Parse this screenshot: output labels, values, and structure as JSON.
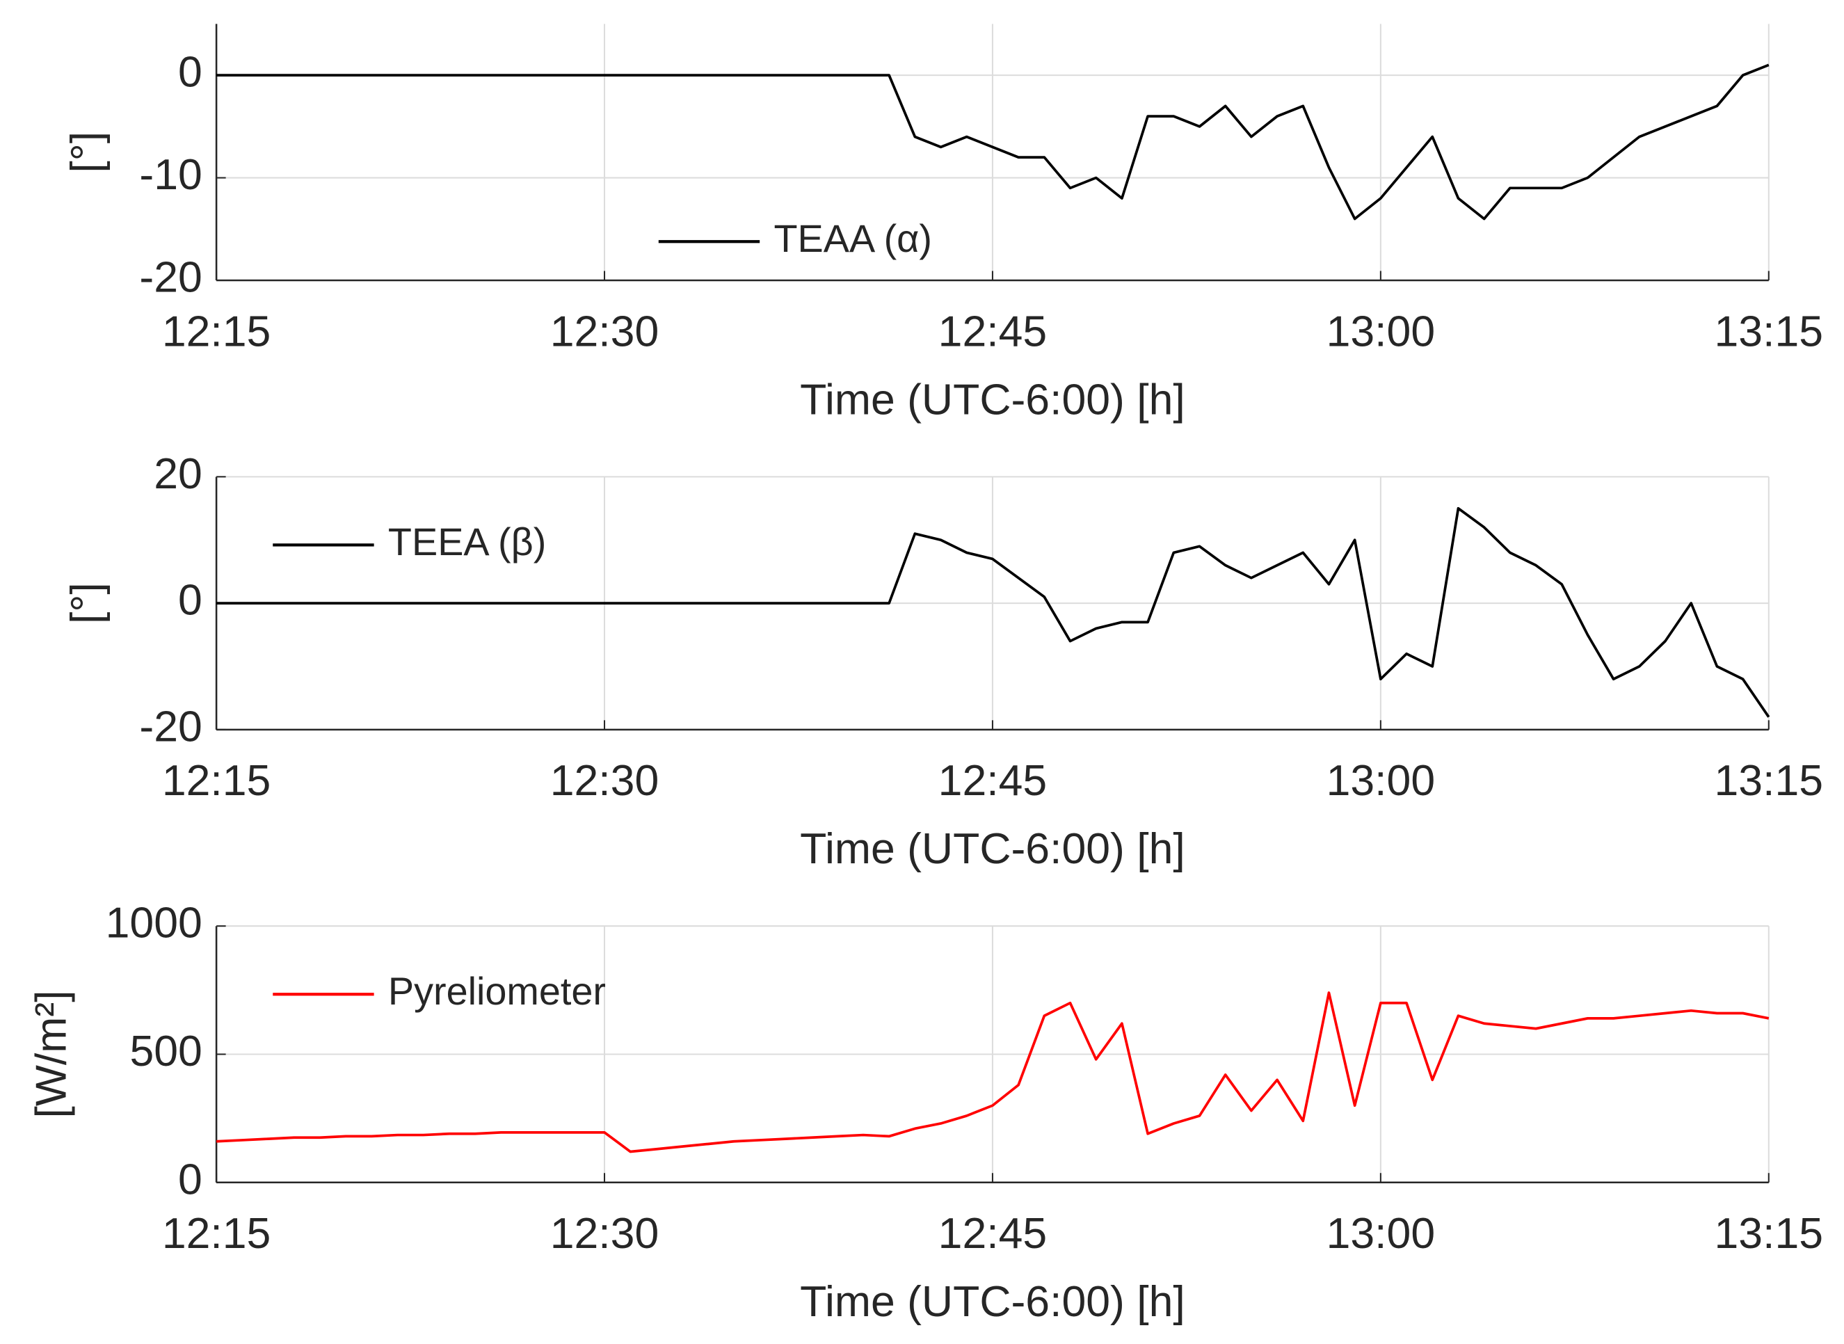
{
  "chart_data": [
    {
      "type": "line",
      "xlabel": "Time (UTC-6:00) [h]",
      "ylabel": "[°]",
      "x": [
        "12:15",
        "12:16",
        "12:17",
        "12:18",
        "12:19",
        "12:20",
        "12:21",
        "12:22",
        "12:23",
        "12:24",
        "12:25",
        "12:26",
        "12:27",
        "12:28",
        "12:29",
        "12:30",
        "12:31",
        "12:32",
        "12:33",
        "12:34",
        "12:35",
        "12:36",
        "12:37",
        "12:38",
        "12:39",
        "12:40",
        "12:41",
        "12:42",
        "12:43",
        "12:44",
        "12:45",
        "12:46",
        "12:47",
        "12:48",
        "12:49",
        "12:50",
        "12:51",
        "12:52",
        "12:53",
        "12:54",
        "12:55",
        "12:56",
        "12:57",
        "12:58",
        "12:59",
        "13:00",
        "13:01",
        "13:02",
        "13:03",
        "13:04",
        "13:05",
        "13:06",
        "13:07",
        "13:08",
        "13:09",
        "13:10",
        "13:11",
        "13:12",
        "13:13",
        "13:14",
        "13:15"
      ],
      "series": [
        {
          "name": "TEAA (α)",
          "color": "#000000",
          "values": [
            0,
            0,
            0,
            0,
            0,
            0,
            0,
            0,
            0,
            0,
            0,
            0,
            0,
            0,
            0,
            0,
            0,
            0,
            0,
            0,
            0,
            0,
            0,
            0,
            0,
            0,
            0,
            -6,
            -7,
            -6,
            -7,
            -8,
            -8,
            -11,
            -10,
            -12,
            -4,
            -4,
            -5,
            -3,
            -6,
            -4,
            -3,
            -9,
            -14,
            -12,
            -9,
            -6,
            -12,
            -14,
            -11,
            -11,
            -11,
            -10,
            -8,
            -6,
            -5,
            -4,
            -3,
            0,
            1
          ]
        }
      ],
      "xlim": [
        "12:15",
        "13:15"
      ],
      "ylim": [
        -20,
        5
      ],
      "xticks": [
        "12:15",
        "12:30",
        "12:45",
        "13:00",
        "13:15"
      ],
      "yticks": [
        -20,
        -10,
        0
      ],
      "grid": true,
      "legend": "lower center"
    },
    {
      "type": "line",
      "xlabel": "Time (UTC-6:00) [h]",
      "ylabel": "[°]",
      "x": [
        "12:15",
        "12:16",
        "12:17",
        "12:18",
        "12:19",
        "12:20",
        "12:21",
        "12:22",
        "12:23",
        "12:24",
        "12:25",
        "12:26",
        "12:27",
        "12:28",
        "12:29",
        "12:30",
        "12:31",
        "12:32",
        "12:33",
        "12:34",
        "12:35",
        "12:36",
        "12:37",
        "12:38",
        "12:39",
        "12:40",
        "12:41",
        "12:42",
        "12:43",
        "12:44",
        "12:45",
        "12:46",
        "12:47",
        "12:48",
        "12:49",
        "12:50",
        "12:51",
        "12:52",
        "12:53",
        "12:54",
        "12:55",
        "12:56",
        "12:57",
        "12:58",
        "12:59",
        "13:00",
        "13:01",
        "13:02",
        "13:03",
        "13:04",
        "13:05",
        "13:06",
        "13:07",
        "13:08",
        "13:09",
        "13:10",
        "13:11",
        "13:12",
        "13:13",
        "13:14",
        "13:15"
      ],
      "series": [
        {
          "name": "TEEA (β)",
          "color": "#000000",
          "values": [
            0,
            0,
            0,
            0,
            0,
            0,
            0,
            0,
            0,
            0,
            0,
            0,
            0,
            0,
            0,
            0,
            0,
            0,
            0,
            0,
            0,
            0,
            0,
            0,
            0,
            0,
            0,
            11,
            10,
            8,
            7,
            4,
            1,
            -6,
            -4,
            -3,
            -3,
            8,
            9,
            6,
            4,
            6,
            8,
            3,
            10,
            -12,
            -8,
            -10,
            15,
            12,
            8,
            6,
            3,
            -5,
            -12,
            -10,
            -6,
            0,
            -10,
            -12,
            -18
          ]
        }
      ],
      "xlim": [
        "12:15",
        "13:15"
      ],
      "ylim": [
        -20,
        20
      ],
      "xticks": [
        "12:15",
        "12:30",
        "12:45",
        "13:00",
        "13:15"
      ],
      "yticks": [
        -20,
        0,
        20
      ],
      "grid": true,
      "legend": "upper left"
    },
    {
      "type": "line",
      "xlabel": "Time (UTC-6:00) [h]",
      "ylabel": "[W/m²]",
      "x": [
        "12:15",
        "12:16",
        "12:17",
        "12:18",
        "12:19",
        "12:20",
        "12:21",
        "12:22",
        "12:23",
        "12:24",
        "12:25",
        "12:26",
        "12:27",
        "12:28",
        "12:29",
        "12:30",
        "12:31",
        "12:32",
        "12:33",
        "12:34",
        "12:35",
        "12:36",
        "12:37",
        "12:38",
        "12:39",
        "12:40",
        "12:41",
        "12:42",
        "12:43",
        "12:44",
        "12:45",
        "12:46",
        "12:47",
        "12:48",
        "12:49",
        "12:50",
        "12:51",
        "12:52",
        "12:53",
        "12:54",
        "12:55",
        "12:56",
        "12:57",
        "12:58",
        "12:59",
        "13:00",
        "13:01",
        "13:02",
        "13:03",
        "13:04",
        "13:05",
        "13:06",
        "13:07",
        "13:08",
        "13:09",
        "13:10",
        "13:11",
        "13:12",
        "13:13",
        "13:14",
        "13:15"
      ],
      "series": [
        {
          "name": "Pyreliometer",
          "color": "#ff0000",
          "values": [
            160,
            165,
            170,
            175,
            175,
            180,
            180,
            185,
            185,
            190,
            190,
            195,
            195,
            195,
            195,
            195,
            120,
            130,
            140,
            150,
            160,
            165,
            170,
            175,
            180,
            185,
            180,
            210,
            230,
            260,
            300,
            380,
            650,
            700,
            480,
            620,
            190,
            230,
            260,
            420,
            280,
            400,
            240,
            740,
            300,
            700,
            700,
            400,
            650,
            620,
            610,
            600,
            620,
            640,
            640,
            650,
            660,
            670,
            660,
            660,
            640
          ]
        }
      ],
      "xlim": [
        "12:15",
        "13:15"
      ],
      "ylim": [
        0,
        1000
      ],
      "xticks": [
        "12:15",
        "12:30",
        "12:45",
        "13:00",
        "13:15"
      ],
      "yticks": [
        0,
        500,
        1000
      ],
      "grid": true,
      "legend": "upper left"
    }
  ]
}
